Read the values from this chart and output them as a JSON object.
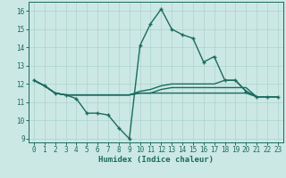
{
  "xlabel": "Humidex (Indice chaleur)",
  "ylabel": "",
  "bg_color": "#cce8e4",
  "line_color": "#1a6b5e",
  "grid_color": "#aad4cc",
  "xlim": [
    -0.5,
    23.5
  ],
  "ylim": [
    8.8,
    16.5
  ],
  "yticks": [
    9,
    10,
    11,
    12,
    13,
    14,
    15,
    16
  ],
  "xticks": [
    0,
    1,
    2,
    3,
    4,
    5,
    6,
    7,
    8,
    9,
    10,
    11,
    12,
    13,
    14,
    15,
    16,
    17,
    18,
    19,
    20,
    21,
    22,
    23
  ],
  "series": [
    [
      12.2,
      11.9,
      11.5,
      11.4,
      11.2,
      10.4,
      10.4,
      10.3,
      9.6,
      9.0,
      14.1,
      15.3,
      16.1,
      15.0,
      14.7,
      14.5,
      13.2,
      13.5,
      12.2,
      12.2,
      11.6,
      11.3,
      11.3,
      11.3
    ],
    [
      12.2,
      11.9,
      11.5,
      11.4,
      11.4,
      11.4,
      11.4,
      11.4,
      11.4,
      11.4,
      11.5,
      11.5,
      11.7,
      11.8,
      11.8,
      11.8,
      11.8,
      11.8,
      11.8,
      11.8,
      11.8,
      11.3,
      11.3,
      11.3
    ],
    [
      12.2,
      11.9,
      11.5,
      11.4,
      11.4,
      11.4,
      11.4,
      11.4,
      11.4,
      11.4,
      11.5,
      11.5,
      11.5,
      11.5,
      11.5,
      11.5,
      11.5,
      11.5,
      11.5,
      11.5,
      11.5,
      11.3,
      11.3,
      11.3
    ],
    [
      12.2,
      11.9,
      11.5,
      11.4,
      11.4,
      11.4,
      11.4,
      11.4,
      11.4,
      11.4,
      11.6,
      11.7,
      11.9,
      12.0,
      12.0,
      12.0,
      12.0,
      12.0,
      12.2,
      12.2,
      11.6,
      11.3,
      11.3,
      11.3
    ]
  ]
}
